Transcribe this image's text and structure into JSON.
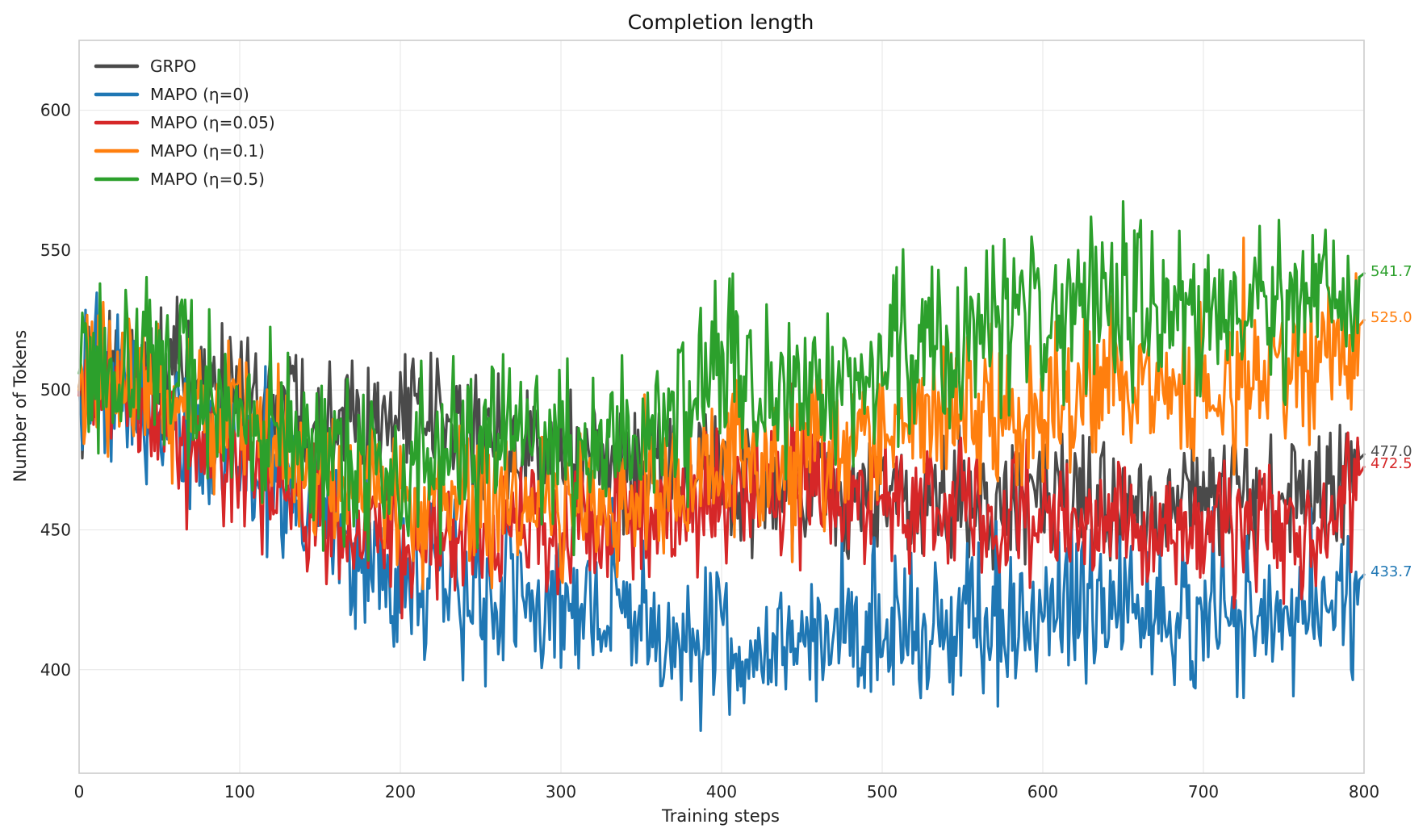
{
  "chart_data": {
    "type": "line",
    "title": "Completion length",
    "xlabel": "Training steps",
    "ylabel": "Number of Tokens",
    "xlim": [
      0,
      800
    ],
    "ylim": [
      363,
      625
    ],
    "xticks": [
      0,
      100,
      200,
      300,
      400,
      500,
      600,
      700,
      800
    ],
    "yticks": [
      400,
      450,
      500,
      550,
      600
    ],
    "grid": true,
    "legend_position": "top-left",
    "series": [
      {
        "name": "GRPO",
        "color": "#4a4a4a",
        "final_value_label": "477.0",
        "points": [
          [
            0,
            501
          ],
          [
            25,
            508
          ],
          [
            50,
            507
          ],
          [
            75,
            502
          ],
          [
            100,
            500
          ],
          [
            125,
            498
          ],
          [
            150,
            493
          ],
          [
            175,
            492
          ],
          [
            200,
            490
          ],
          [
            225,
            489
          ],
          [
            250,
            484
          ],
          [
            275,
            480
          ],
          [
            300,
            478
          ],
          [
            325,
            475
          ],
          [
            350,
            472
          ],
          [
            375,
            470
          ],
          [
            400,
            468
          ],
          [
            425,
            466
          ],
          [
            450,
            462
          ],
          [
            475,
            462
          ],
          [
            500,
            460
          ],
          [
            525,
            459
          ],
          [
            550,
            460
          ],
          [
            575,
            460
          ],
          [
            600,
            460
          ],
          [
            625,
            461
          ],
          [
            650,
            462
          ],
          [
            675,
            461
          ],
          [
            700,
            461
          ],
          [
            725,
            461
          ],
          [
            750,
            460
          ],
          [
            775,
            462
          ],
          [
            800,
            477
          ]
        ]
      },
      {
        "name": "MAPO (η=0)",
        "color": "#1f77b4",
        "final_value_label": "433.7",
        "points": [
          [
            0,
            500
          ],
          [
            25,
            498
          ],
          [
            50,
            490
          ],
          [
            75,
            483
          ],
          [
            100,
            476
          ],
          [
            125,
            468
          ],
          [
            150,
            458
          ],
          [
            175,
            438
          ],
          [
            200,
            435
          ],
          [
            225,
            432
          ],
          [
            250,
            428
          ],
          [
            275,
            428
          ],
          [
            300,
            424
          ],
          [
            325,
            420
          ],
          [
            350,
            418
          ],
          [
            375,
            408
          ],
          [
            400,
            410
          ],
          [
            425,
            407
          ],
          [
            450,
            408
          ],
          [
            475,
            410
          ],
          [
            500,
            414
          ],
          [
            525,
            416
          ],
          [
            550,
            418
          ],
          [
            575,
            420
          ],
          [
            600,
            420
          ],
          [
            625,
            421
          ],
          [
            650,
            423
          ],
          [
            675,
            418
          ],
          [
            700,
            420
          ],
          [
            725,
            418
          ],
          [
            750,
            418
          ],
          [
            775,
            418
          ],
          [
            800,
            434
          ]
        ]
      },
      {
        "name": "MAPO (η=0.05)",
        "color": "#d62728",
        "final_value_label": "472.5",
        "points": [
          [
            0,
            498
          ],
          [
            25,
            497
          ],
          [
            50,
            490
          ],
          [
            75,
            482
          ],
          [
            100,
            472
          ],
          [
            125,
            462
          ],
          [
            150,
            455
          ],
          [
            175,
            448
          ],
          [
            200,
            446
          ],
          [
            225,
            447
          ],
          [
            250,
            448
          ],
          [
            275,
            450
          ],
          [
            300,
            450
          ],
          [
            325,
            452
          ],
          [
            350,
            454
          ],
          [
            375,
            456
          ],
          [
            400,
            460
          ],
          [
            425,
            460
          ],
          [
            450,
            461
          ],
          [
            475,
            461
          ],
          [
            500,
            459
          ],
          [
            525,
            458
          ],
          [
            550,
            456
          ],
          [
            575,
            456
          ],
          [
            600,
            455
          ],
          [
            625,
            454
          ],
          [
            650,
            452
          ],
          [
            675,
            452
          ],
          [
            700,
            451
          ],
          [
            725,
            450
          ],
          [
            750,
            449
          ],
          [
            775,
            449
          ],
          [
            800,
            472.5
          ]
        ]
      },
      {
        "name": "MAPO (η=0.1)",
        "color": "#ff7f0e",
        "final_value_label": "525.0",
        "points": [
          [
            0,
            500
          ],
          [
            25,
            504
          ],
          [
            50,
            500
          ],
          [
            75,
            494
          ],
          [
            100,
            487
          ],
          [
            125,
            480
          ],
          [
            150,
            468
          ],
          [
            175,
            462
          ],
          [
            200,
            458
          ],
          [
            225,
            458
          ],
          [
            250,
            460
          ],
          [
            275,
            458
          ],
          [
            300,
            458
          ],
          [
            325,
            458
          ],
          [
            350,
            462
          ],
          [
            375,
            468
          ],
          [
            400,
            472
          ],
          [
            425,
            475
          ],
          [
            450,
            478
          ],
          [
            475,
            480
          ],
          [
            500,
            483
          ],
          [
            525,
            490
          ],
          [
            550,
            493
          ],
          [
            575,
            492
          ],
          [
            600,
            496
          ],
          [
            625,
            498
          ],
          [
            650,
            502
          ],
          [
            675,
            500
          ],
          [
            700,
            502
          ],
          [
            725,
            505
          ],
          [
            750,
            506
          ],
          [
            775,
            508
          ],
          [
            800,
            525
          ]
        ]
      },
      {
        "name": "MAPO (η=0.5)",
        "color": "#2ca02c",
        "final_value_label": "541.7",
        "points": [
          [
            0,
            506
          ],
          [
            25,
            510
          ],
          [
            50,
            510
          ],
          [
            75,
            502
          ],
          [
            100,
            492
          ],
          [
            125,
            485
          ],
          [
            150,
            475
          ],
          [
            175,
            473
          ],
          [
            200,
            475
          ],
          [
            225,
            478
          ],
          [
            250,
            480
          ],
          [
            275,
            480
          ],
          [
            300,
            478
          ],
          [
            325,
            480
          ],
          [
            350,
            486
          ],
          [
            375,
            494
          ],
          [
            400,
            503
          ],
          [
            425,
            505
          ],
          [
            450,
            504
          ],
          [
            475,
            504
          ],
          [
            500,
            510
          ],
          [
            525,
            518
          ],
          [
            550,
            522
          ],
          [
            575,
            522
          ],
          [
            600,
            526
          ],
          [
            625,
            527
          ],
          [
            650,
            528
          ],
          [
            675,
            528
          ],
          [
            700,
            527
          ],
          [
            725,
            526
          ],
          [
            750,
            528
          ],
          [
            775,
            530
          ],
          [
            800,
            541.7
          ]
        ]
      }
    ]
  }
}
